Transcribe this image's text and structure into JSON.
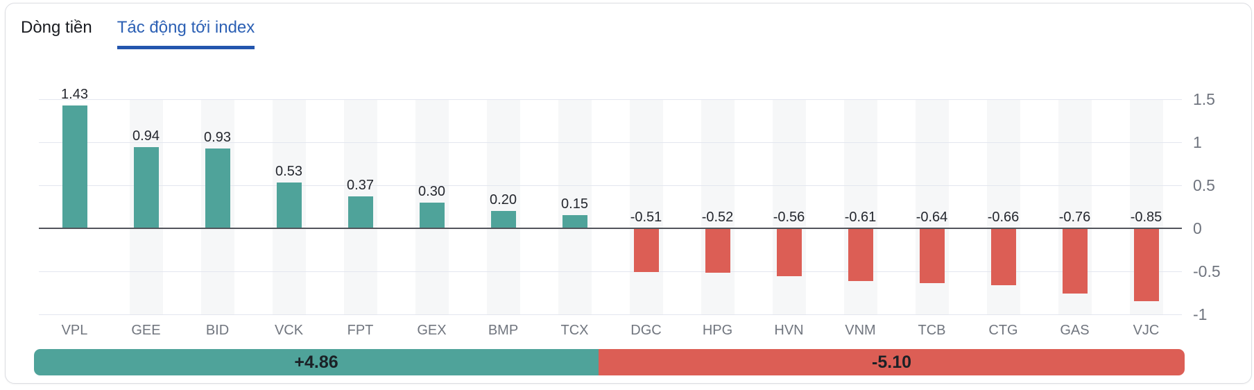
{
  "tabs": [
    {
      "label": "Dòng tiền",
      "active": false
    },
    {
      "label": "Tác động tới index",
      "active": true
    }
  ],
  "chart_data": {
    "type": "bar",
    "title": "Tác động tới index",
    "categories": [
      "VPL",
      "GEE",
      "BID",
      "VCK",
      "FPT",
      "GEX",
      "BMP",
      "TCX",
      "DGC",
      "HPG",
      "HVN",
      "VNM",
      "TCB",
      "CTG",
      "GAS",
      "VJC"
    ],
    "values": [
      1.43,
      0.94,
      0.93,
      0.53,
      0.37,
      0.3,
      0.2,
      0.15,
      -0.51,
      -0.52,
      -0.56,
      -0.61,
      -0.64,
      -0.66,
      -0.76,
      -0.85
    ],
    "value_labels": [
      "1.43",
      "0.94",
      "0.93",
      "0.53",
      "0.37",
      "0.30",
      "0.20",
      "0.15",
      "-0.51",
      "-0.52",
      "-0.56",
      "-0.61",
      "-0.64",
      "-0.66",
      "-0.76",
      "-0.85"
    ],
    "y_ticks": [
      1.5,
      1,
      0.5,
      0,
      -0.5,
      -1
    ],
    "y_tick_labels": [
      "1.5",
      "1",
      "0.5",
      "0",
      "-0.5",
      "-1"
    ],
    "ylim": [
      -1,
      1.5
    ],
    "xlabel": "",
    "ylabel": "",
    "grid": true,
    "legend": false,
    "y_axis_side": "right"
  },
  "summary": {
    "positive_label": "+4.86",
    "positive_value": 4.86,
    "negative_label": "-5.10",
    "negative_value": 5.1
  },
  "colors": {
    "positive": "#4FA39A",
    "negative": "#DC5E55",
    "active_tab_text": "#2C60B4",
    "tab_underline": "#2456AE",
    "gridline": "#E3E6EF",
    "zero_line": "#52545B",
    "column_stripe": "#F6F7F8"
  }
}
